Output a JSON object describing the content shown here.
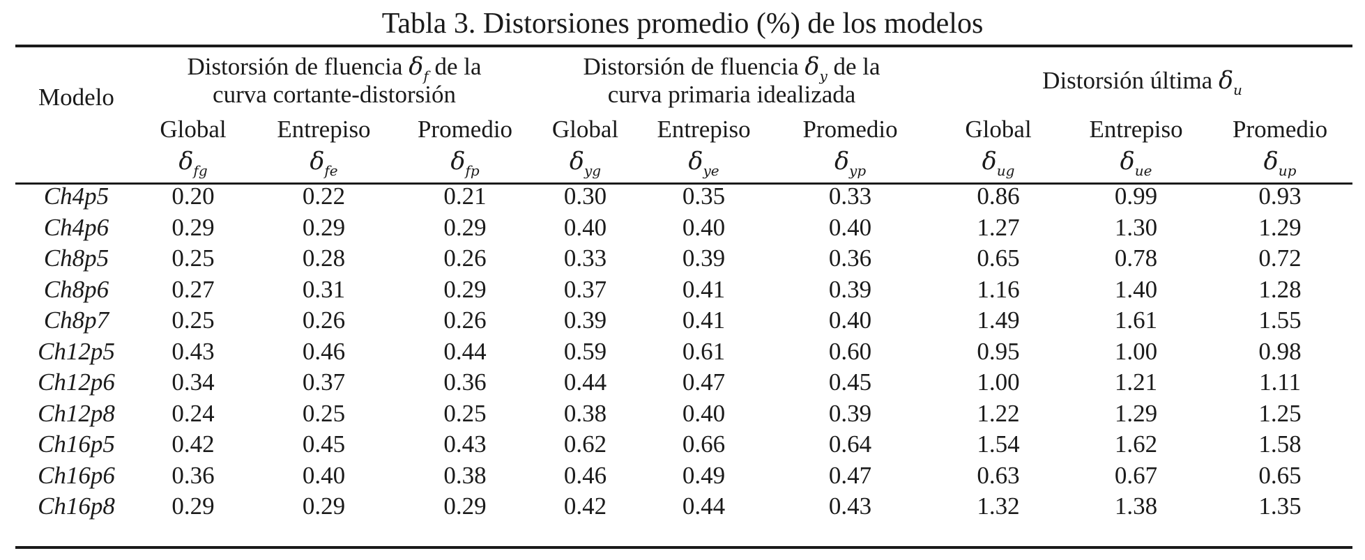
{
  "title": "Tabla 3. Distorsiones promedio (%) de los modelos",
  "header": {
    "model_label": "Modelo",
    "groups": [
      {
        "line1_pre": "Distorsión de fluencia ",
        "symbol": "δ",
        "symbol_sub": "f",
        "line1_post": " de la",
        "line2": "curva cortante-distorsión"
      },
      {
        "line1_pre": "Distorsión de fluencia ",
        "symbol": "δ",
        "symbol_sub": "y",
        "line1_post": " de la",
        "line2": "curva primaria idealizada"
      },
      {
        "line1_pre": "Distorsión última ",
        "symbol": "δ",
        "symbol_sub": "u",
        "line1_post": "",
        "line2": ""
      }
    ],
    "sub_labels": [
      "Global",
      "Entrepiso",
      "Promedio",
      "Global",
      "Entrepiso",
      "Promedio",
      "Global",
      "Entrepiso",
      "Promedio"
    ],
    "symbols": [
      {
        "sym": "δ",
        "sub": "fg"
      },
      {
        "sym": "δ",
        "sub": "fe"
      },
      {
        "sym": "δ",
        "sub": "fp"
      },
      {
        "sym": "δ",
        "sub": "yg"
      },
      {
        "sym": "δ",
        "sub": "ye"
      },
      {
        "sym": "δ",
        "sub": "yp"
      },
      {
        "sym": "δ",
        "sub": "ug"
      },
      {
        "sym": "δ",
        "sub": "ue"
      },
      {
        "sym": "δ",
        "sub": "up"
      }
    ]
  },
  "rows": [
    {
      "model": "Ch4p5",
      "values": [
        "0.20",
        "0.22",
        "0.21",
        "0.30",
        "0.35",
        "0.33",
        "0.86",
        "0.99",
        "0.93"
      ]
    },
    {
      "model": "Ch4p6",
      "values": [
        "0.29",
        "0.29",
        "0.29",
        "0.40",
        "0.40",
        "0.40",
        "1.27",
        "1.30",
        "1.29"
      ]
    },
    {
      "model": "Ch8p5",
      "values": [
        "0.25",
        "0.28",
        "0.26",
        "0.33",
        "0.39",
        "0.36",
        "0.65",
        "0.78",
        "0.72"
      ]
    },
    {
      "model": "Ch8p6",
      "values": [
        "0.27",
        "0.31",
        "0.29",
        "0.37",
        "0.41",
        "0.39",
        "1.16",
        "1.40",
        "1.28"
      ]
    },
    {
      "model": "Ch8p7",
      "values": [
        "0.25",
        "0.26",
        "0.26",
        "0.39",
        "0.41",
        "0.40",
        "1.49",
        "1.61",
        "1.55"
      ]
    },
    {
      "model": "Ch12p5",
      "values": [
        "0.43",
        "0.46",
        "0.44",
        "0.59",
        "0.61",
        "0.60",
        "0.95",
        "1.00",
        "0.98"
      ]
    },
    {
      "model": "Ch12p6",
      "values": [
        "0.34",
        "0.37",
        "0.36",
        "0.44",
        "0.47",
        "0.45",
        "1.00",
        "1.21",
        "1.11"
      ]
    },
    {
      "model": "Ch12p8",
      "values": [
        "0.24",
        "0.25",
        "0.25",
        "0.38",
        "0.40",
        "0.39",
        "1.22",
        "1.29",
        "1.25"
      ]
    },
    {
      "model": "Ch16p5",
      "values": [
        "0.42",
        "0.45",
        "0.43",
        "0.62",
        "0.66",
        "0.64",
        "1.54",
        "1.62",
        "1.58"
      ]
    },
    {
      "model": "Ch16p6",
      "values": [
        "0.36",
        "0.40",
        "0.38",
        "0.46",
        "0.49",
        "0.47",
        "0.63",
        "0.67",
        "0.65"
      ]
    },
    {
      "model": "Ch16p8",
      "values": [
        "0.29",
        "0.29",
        "0.29",
        "0.42",
        "0.44",
        "0.43",
        "1.32",
        "1.38",
        "1.35"
      ]
    }
  ]
}
